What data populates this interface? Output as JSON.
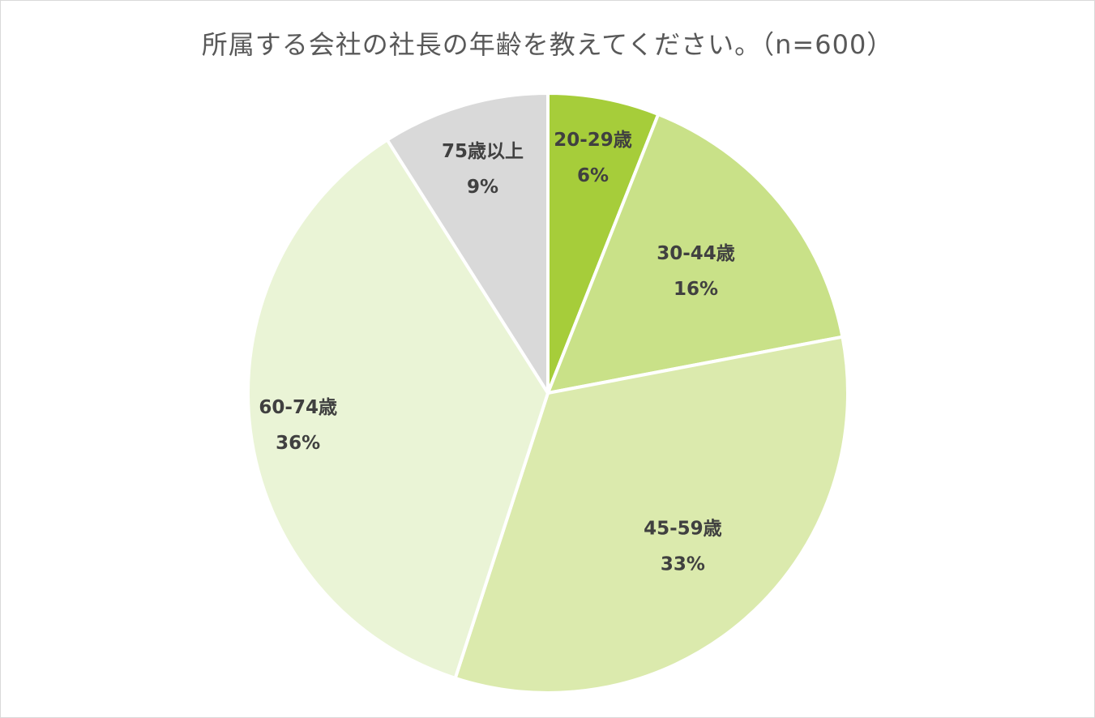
{
  "chart_data": {
    "type": "pie",
    "title": "所属する会社の社長の年齢を教えてください。（n=600）",
    "categories": [
      "20-29歳",
      "30-44歳",
      "45-59歳",
      "60-74歳",
      "75歳以上"
    ],
    "values": [
      6,
      16,
      33,
      36,
      9
    ],
    "value_labels": [
      "6%",
      "16%",
      "33%",
      "36%",
      "9%"
    ],
    "colors": [
      "#a6cd3a",
      "#c9e188",
      "#dbeaad",
      "#eaf4d6",
      "#d9d9d9"
    ],
    "slice_border_color": "#ffffff",
    "legend": "none"
  }
}
